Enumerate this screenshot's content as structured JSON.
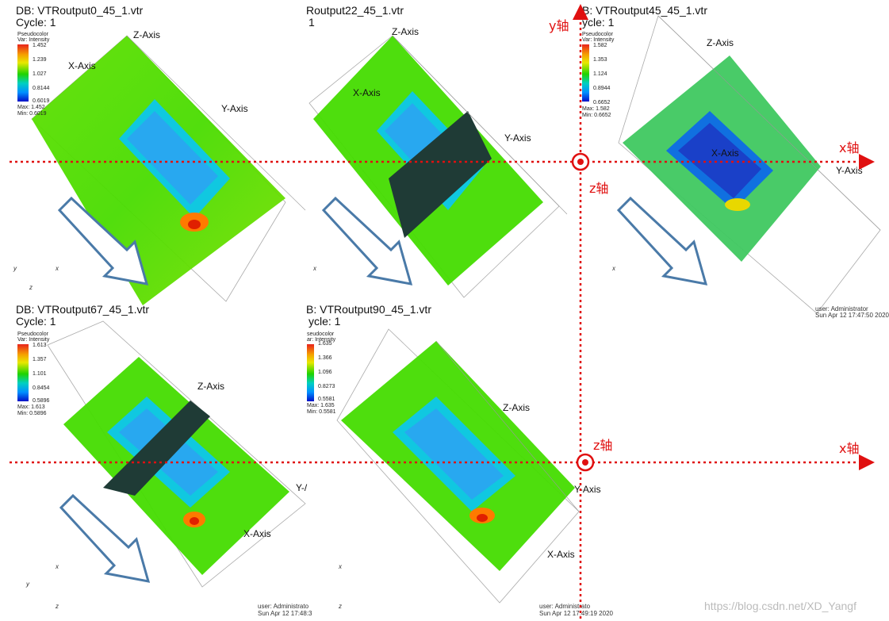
{
  "panels": [
    {
      "title": "DB: VTRoutput0_45_1.vtr",
      "cycle": "Cycle: 1",
      "legend_name": "Pseudocolor",
      "legend_var": "Var: Intensity",
      "ticks": [
        "1.452",
        "1.239",
        "1.027",
        "0.8144",
        "0.6019"
      ],
      "max": "Max: 1.452",
      "min": "Min: 0.6019",
      "axes": [
        "Z-Axis",
        "X-Axis",
        "Y-Axis"
      ]
    },
    {
      "title": "Routput22_45_1.vtr",
      "cycle": "1",
      "axes": [
        "Z-Axis",
        "X-Axis",
        "Y-Axis"
      ]
    },
    {
      "title": "B: VTRoutput45_45_1.vtr",
      "cycle": "ycle: 1",
      "legend_name": "Pseudocolor",
      "legend_var": "Var: Intensity",
      "ticks": [
        "1.582",
        "1.353",
        "1.124",
        "0.8944",
        "0.6652"
      ],
      "max": "Max: 1.582",
      "min": "Min: 0.6652",
      "axes": [
        "Z-Axis",
        "X-Axis",
        "Y-Axis"
      ],
      "user": "user: Administrator",
      "date": "Sun Apr 12 17:47:50 2020"
    },
    {
      "title": "DB: VTRoutput67_45_1.vtr",
      "cycle": "Cycle: 1",
      "legend_name": "Pseudocolor",
      "legend_var": "Var: Intensity",
      "ticks": [
        "1.613",
        "1.357",
        "1.101",
        "0.8454",
        "0.5896"
      ],
      "max": "Max: 1.613",
      "min": "Min: 0.5896",
      "axes": [
        "Z-Axis",
        "X-Axis",
        "Y-/"
      ],
      "user": "user: Administrato",
      "date": "Sun Apr 12 17:48:3"
    },
    {
      "title": "B: VTRoutput90_45_1.vtr",
      "cycle": "ycle: 1",
      "legend_name": "seudocolor",
      "legend_var": "ar: Intensity",
      "ticks": [
        "1.635",
        "1.366",
        "1.096",
        "0.8273",
        "0.5581"
      ],
      "max": "Max: 1.635",
      "min": "Min: 0.5581",
      "axes": [
        "Z-Axis",
        "X-Axis",
        "Y-Axis"
      ],
      "user": "user: Administrato",
      "date": "Sun Apr 12 17:49:19 2020"
    }
  ],
  "annotations": {
    "y_axis": "y轴",
    "x_axis_top": "x轴",
    "z_axis_top": "z轴",
    "z_axis_bottom": "z轴",
    "x_axis_bottom": "x轴"
  },
  "corner_axes": [
    "y",
    "z",
    "x"
  ],
  "watermark": "https://blog.csdn.net/XD_Yangf",
  "colors": {
    "annotation": "#e01010",
    "arrow": "#4a7aa8",
    "plane": "#1f3b36"
  }
}
